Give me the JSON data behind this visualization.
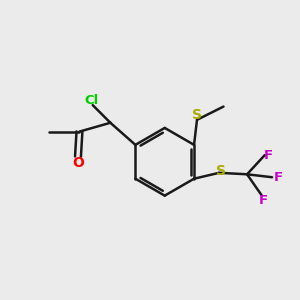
{
  "bg_color": "#ebebeb",
  "bond_color": "#1a1a1a",
  "bond_width": 1.8,
  "atom_colors": {
    "Cl": "#00cc00",
    "O": "#ff0000",
    "S_yellow": "#aaaa00",
    "S_cf3": "#aa00aa",
    "F": "#cc00cc",
    "C": "#1a1a1a"
  },
  "font_size": 9.5
}
